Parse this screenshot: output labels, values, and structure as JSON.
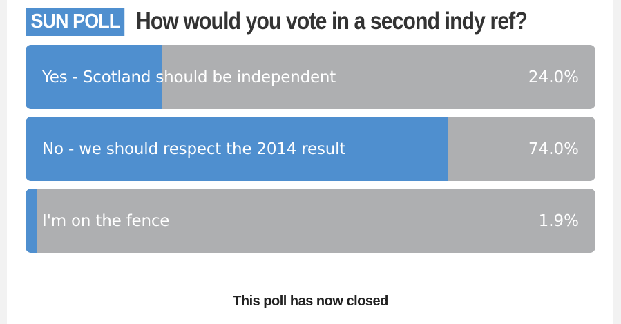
{
  "poll": {
    "badge": "SUN POLL",
    "question": "How would you vote in a second indy ref?",
    "options": [
      {
        "label": "Yes - Scotland should be independent",
        "percent_text": "24.0%",
        "percent": 24.0
      },
      {
        "label": "No - we should respect the 2014 result",
        "percent_text": "74.0%",
        "percent": 74.0
      },
      {
        "label": "I'm on the fence",
        "percent_text": "1.9%",
        "percent": 1.9
      }
    ],
    "status": "This poll has now closed"
  },
  "colors": {
    "accent": "#4f8fcf",
    "bar_background": "#aeafb1",
    "text_dark": "#333333"
  }
}
